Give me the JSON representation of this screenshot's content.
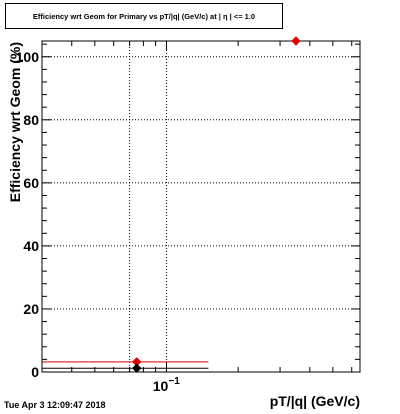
{
  "title": "Efficiency wrt Geom for Primary vs pT/|q| (GeV/c) at | η | <= 1.0",
  "timestamp": "Tue Apr  3 12:09:47 2018",
  "colors": {
    "primary": "#e00000",
    "secondary": "#000000"
  },
  "chart_data": {
    "type": "scatter",
    "title": "Efficiency wrt Geom for Primary vs pT/|q| (GeV/c) at | η | <= 1.0",
    "xlabel": "pT/|q| (GeV/c)",
    "ylabel": "Efficiency wrt Geom (%)",
    "xscale": "log",
    "xlim": [
      0.03,
      0.65
    ],
    "ylim": [
      0,
      105
    ],
    "grid": true,
    "y_ticks": [
      0,
      20,
      40,
      60,
      80,
      100
    ],
    "y_tick_labels": [
      "0",
      "20",
      "40",
      "60",
      "80",
      "100"
    ],
    "x_tick_label_base": "10",
    "x_tick_label_exp": "−1",
    "series": [
      {
        "color": "#e00000",
        "marker": "diamond",
        "points": [
          {
            "x": 0.075,
            "y": 3.2,
            "xerr": [
              0.03,
              0.15
            ]
          },
          {
            "x": 0.35,
            "y": 105
          }
        ]
      },
      {
        "color": "#000000",
        "marker": "diamond",
        "points": [
          {
            "x": 0.075,
            "y": 1.2,
            "xerr": [
              0.03,
              0.15
            ]
          }
        ]
      }
    ]
  }
}
